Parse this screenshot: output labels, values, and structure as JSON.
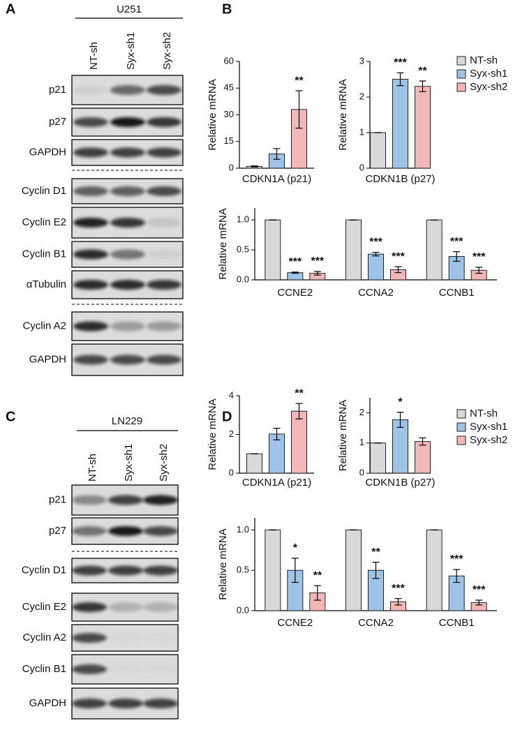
{
  "blot_panels": [
    {
      "letter": "A",
      "cell_line": "U251",
      "lanes": [
        "NT-sh",
        "Syx-sh1",
        "Syx-sh2"
      ],
      "rows": [
        "p21",
        "p27",
        "GAPDH",
        "Cyclin D1",
        "Cyclin E2",
        "Cyclin B1",
        "αTubulin",
        "Cyclin A2",
        "GAPDH"
      ]
    },
    {
      "letter": "C",
      "cell_line": "LN229",
      "lanes": [
        "NT-sh",
        "Syx-sh1",
        "Syx-sh2"
      ],
      "rows": [
        "p21",
        "p27",
        "Cyclin D1",
        "Cyclin E2",
        "Cyclin A2",
        "Cyclin B1",
        "GAPDH"
      ]
    }
  ],
  "chart_data": [
    {
      "type": "bar",
      "panel_label": "B",
      "ylabel": "Relative mRNA",
      "xlabel": "CDKN1A (p21)",
      "ylim": [
        0,
        60
      ],
      "yticks": [
        0,
        15,
        30,
        45,
        60
      ],
      "series": [
        {
          "color": "#d9d9d9",
          "values": [
            1
          ],
          "errors": [
            0.3
          ],
          "annotations": [
            null
          ]
        },
        {
          "color": "#9dc3e6",
          "values": [
            8
          ],
          "errors": [
            3
          ],
          "annotations": [
            null
          ]
        },
        {
          "color": "#f2b8b8",
          "values": [
            33
          ],
          "errors": [
            10.5
          ],
          "annotations": [
            "**"
          ]
        }
      ]
    },
    {
      "type": "bar",
      "ylabel": "Relative mRNA",
      "xlabel": "CDKN1B (p27)",
      "ylim": [
        0,
        3
      ],
      "yticks": [
        0,
        1,
        2,
        3
      ],
      "series": [
        {
          "name": "NT-sh",
          "color": "#d9d9d9",
          "values": [
            1
          ],
          "errors": [
            0
          ],
          "annotations": [
            null
          ]
        },
        {
          "name": "Syx-sh1",
          "color": "#9dc3e6",
          "values": [
            2.5
          ],
          "errors": [
            0.18
          ],
          "annotations": [
            "***"
          ]
        },
        {
          "name": "Syx-sh2",
          "color": "#f2b8b8",
          "values": [
            2.3
          ],
          "errors": [
            0.15
          ],
          "annotations": [
            "**"
          ]
        }
      ]
    },
    {
      "type": "bar",
      "ylabel": "Relative mRNA",
      "categories": [
        "CCNE2",
        "CCNA2",
        "CCNB1"
      ],
      "ylim": [
        0,
        1.2
      ],
      "yticks": [
        {
          "value": 0,
          "label": "0.0"
        },
        {
          "value": 0.5,
          "label": "0.5"
        },
        {
          "value": 1,
          "label": "1.0"
        }
      ],
      "series": [
        {
          "color": "#d9d9d9",
          "values": [
            1,
            1,
            1
          ],
          "errors": [
            0,
            0,
            0
          ],
          "annotations": [
            null,
            null,
            null
          ]
        },
        {
          "color": "#9dc3e6",
          "values": [
            0.12,
            0.43,
            0.39
          ],
          "errors": [
            0.01,
            0.03,
            0.08
          ],
          "annotations": [
            "***",
            "***",
            "***"
          ]
        },
        {
          "color": "#f2b8b8",
          "values": [
            0.11,
            0.17,
            0.16
          ],
          "errors": [
            0.03,
            0.05,
            0.05
          ],
          "annotations": [
            "***",
            "***",
            "***"
          ]
        }
      ]
    },
    {
      "type": "bar",
      "panel_label": "D",
      "ylabel": "Relative mRNA",
      "xlabel": "CDKN1A (p21)",
      "ylim": [
        0,
        4
      ],
      "yticks": [
        0,
        2,
        4
      ],
      "series": [
        {
          "color": "#d9d9d9",
          "values": [
            1
          ],
          "errors": [
            0
          ],
          "annotations": [
            null
          ]
        },
        {
          "color": "#9dc3e6",
          "values": [
            2.02
          ],
          "errors": [
            0.3
          ],
          "annotations": [
            null
          ]
        },
        {
          "color": "#f2b8b8",
          "values": [
            3.2
          ],
          "errors": [
            0.4
          ],
          "annotations": [
            "**"
          ]
        }
      ]
    },
    {
      "type": "bar",
      "ylabel": "Relative mRNA",
      "xlabel": "CDKN1B (p27)",
      "ylim": [
        0,
        2.5
      ],
      "yticks": [
        0,
        1,
        2
      ],
      "series": [
        {
          "name": "NT-sh",
          "color": "#d9d9d9",
          "values": [
            1
          ],
          "errors": [
            0
          ],
          "annotations": [
            null
          ]
        },
        {
          "name": "Syx-sh1",
          "color": "#9dc3e6",
          "values": [
            1.77
          ],
          "errors": [
            0.25
          ],
          "annotations": [
            "*"
          ]
        },
        {
          "name": "Syx-sh2",
          "color": "#f2b8b8",
          "values": [
            1.05
          ],
          "errors": [
            0.12
          ],
          "annotations": [
            null
          ]
        }
      ]
    },
    {
      "type": "bar",
      "ylabel": "Relative mRNA",
      "categories": [
        "CCNE2",
        "CCNA2",
        "CCNB1"
      ],
      "ylim": [
        0,
        1.15
      ],
      "yticks": [
        {
          "value": 0,
          "label": "0.0"
        },
        {
          "value": 0.5,
          "label": "0.5"
        },
        {
          "value": 1,
          "label": "1.0"
        }
      ],
      "series": [
        {
          "color": "#d9d9d9",
          "values": [
            1,
            1,
            1
          ],
          "errors": [
            0,
            0,
            0
          ],
          "annotations": [
            null,
            null,
            null
          ]
        },
        {
          "color": "#9dc3e6",
          "values": [
            0.5,
            0.5,
            0.43
          ],
          "errors": [
            0.15,
            0.1,
            0.08
          ],
          "annotations": [
            "*",
            "**",
            "***"
          ]
        },
        {
          "color": "#f2b8b8",
          "values": [
            0.22,
            0.11,
            0.1
          ],
          "errors": [
            0.09,
            0.04,
            0.03
          ],
          "annotations": [
            "**",
            "***",
            "***"
          ]
        }
      ]
    }
  ]
}
